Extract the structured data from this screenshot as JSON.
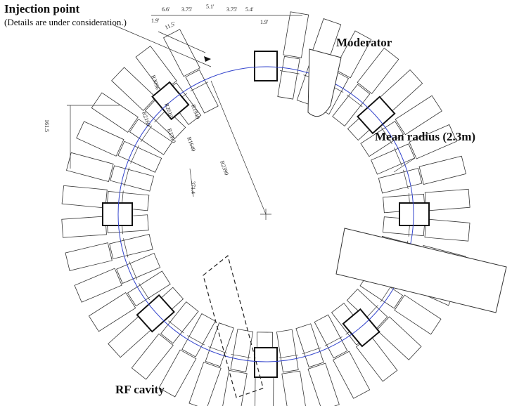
{
  "labels": {
    "injection": "Injection point",
    "injection_note": "(Details are under consideration.)",
    "moderator": "Moderator",
    "mean_radius": "Mean radius (2.3m)",
    "rf_cavity": "RF cavity"
  },
  "dimensions": [
    "6.6'",
    "3.75'",
    "5.1'",
    "3.75'",
    "5.4'",
    "1.9'",
    "1.9'",
    "11.5'",
    "R3056",
    "R2610",
    "R2160",
    "R2390",
    "R1940",
    "R1640",
    "R2390",
    "161.5",
    "371.4"
  ]
}
